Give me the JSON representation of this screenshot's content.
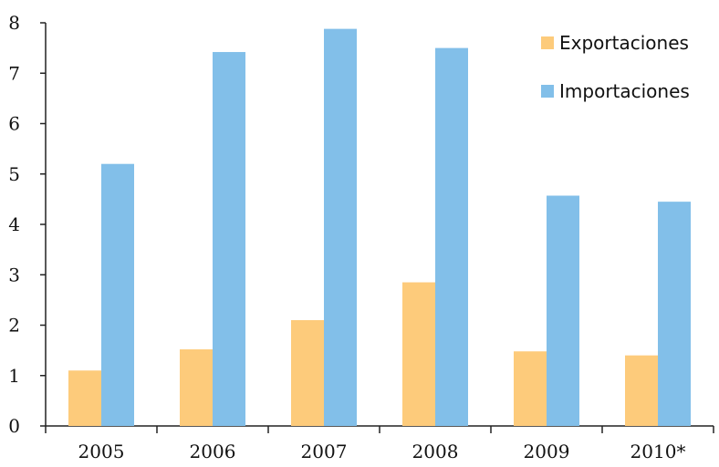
{
  "chart_data": {
    "type": "bar",
    "categories": [
      "2005",
      "2006",
      "2007",
      "2008",
      "2009",
      "2010*"
    ],
    "series": [
      {
        "name": "Exportaciones",
        "color": "#FDCB7B",
        "values": [
          1.1,
          1.52,
          2.1,
          2.85,
          1.48,
          1.4
        ]
      },
      {
        "name": "Importaciones",
        "color": "#82BFE9",
        "values": [
          5.2,
          7.42,
          7.88,
          7.5,
          4.57,
          4.45
        ]
      }
    ],
    "y_ticks": [
      "0",
      "1",
      "2",
      "3",
      "4",
      "5",
      "6",
      "7",
      "8"
    ],
    "ylim": [
      0,
      8
    ],
    "title": "",
    "xlabel": "",
    "ylabel": "",
    "grid": false,
    "legend_position": "top-right"
  }
}
